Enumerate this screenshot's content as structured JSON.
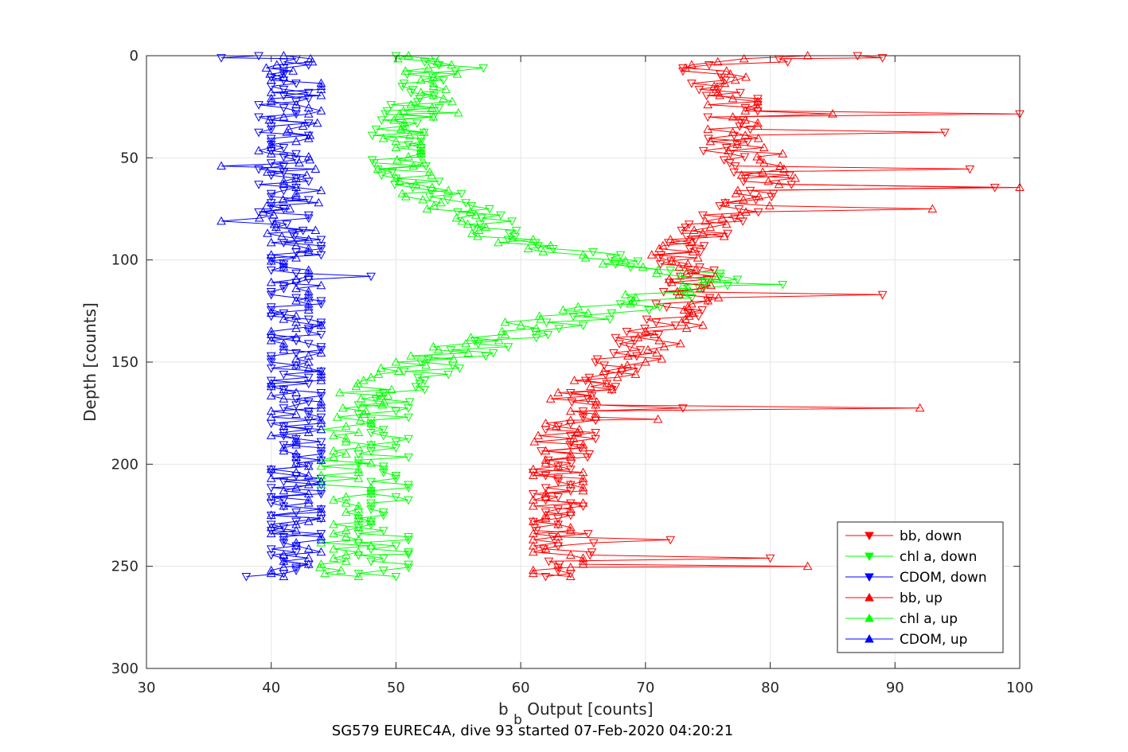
{
  "caption": "SG579 EUREC4A, dive 93 started 07-Feb-2020 04:20:21",
  "chart_data": {
    "type": "scatter",
    "xlabel_main": "b",
    "xlabel_sub": "b",
    "xlabel_rest": " Output [counts]",
    "ylabel": "Depth [counts]",
    "xlim": [
      30,
      100
    ],
    "ylim": [
      0,
      300
    ],
    "y_reversed": true,
    "grid": true,
    "x_ticks": [
      30,
      40,
      50,
      60,
      70,
      80,
      90,
      100
    ],
    "y_ticks": [
      0,
      50,
      100,
      150,
      200,
      250,
      300
    ],
    "x_tick_labels": [
      "30",
      "40",
      "50",
      "60",
      "70",
      "80",
      "90",
      "100"
    ],
    "y_tick_labels": [
      "0",
      "50",
      "100",
      "150",
      "200",
      "250",
      "300"
    ],
    "legend_position": "bottom-right",
    "series": [
      {
        "name": "bb, down",
        "color": "#ff0000",
        "marker": "triangle-down",
        "profile": [
          [
            0,
            86
          ],
          [
            5,
            75
          ],
          [
            10,
            75
          ],
          [
            20,
            77
          ],
          [
            30,
            77
          ],
          [
            40,
            76
          ],
          [
            50,
            77
          ],
          [
            60,
            80
          ],
          [
            70,
            79
          ],
          [
            80,
            76
          ],
          [
            90,
            74
          ],
          [
            100,
            73
          ],
          [
            110,
            74
          ],
          [
            120,
            73
          ],
          [
            130,
            72
          ],
          [
            140,
            69
          ],
          [
            150,
            68
          ],
          [
            160,
            66
          ],
          [
            170,
            64
          ],
          [
            180,
            64
          ],
          [
            190,
            64
          ],
          [
            200,
            63
          ],
          [
            210,
            63
          ],
          [
            220,
            63
          ],
          [
            230,
            63
          ],
          [
            240,
            64
          ],
          [
            250,
            63
          ],
          [
            255,
            63
          ]
        ],
        "spikes": [
          [
            1,
            89
          ],
          [
            29,
            100
          ],
          [
            38,
            94
          ],
          [
            56,
            96
          ],
          [
            65,
            98
          ],
          [
            117,
            89
          ],
          [
            173,
            73
          ],
          [
            237,
            72
          ],
          [
            246,
            80
          ]
        ]
      },
      {
        "name": "chl a, down",
        "color": "#00ff00",
        "marker": "triangle-down",
        "profile": [
          [
            0,
            52
          ],
          [
            10,
            53
          ],
          [
            20,
            52
          ],
          [
            30,
            51
          ],
          [
            40,
            50
          ],
          [
            50,
            50
          ],
          [
            60,
            51
          ],
          [
            70,
            54
          ],
          [
            80,
            57
          ],
          [
            90,
            60
          ],
          [
            95,
            64
          ],
          [
            100,
            68
          ],
          [
            105,
            72
          ],
          [
            108,
            76
          ],
          [
            112,
            77
          ],
          [
            118,
            72
          ],
          [
            125,
            68
          ],
          [
            132,
            63
          ],
          [
            140,
            58
          ],
          [
            150,
            54
          ],
          [
            160,
            51
          ],
          [
            170,
            49
          ],
          [
            180,
            49
          ],
          [
            190,
            49
          ],
          [
            200,
            49
          ],
          [
            210,
            49
          ],
          [
            220,
            49
          ],
          [
            230,
            49
          ],
          [
            240,
            49
          ],
          [
            250,
            49
          ],
          [
            255,
            49
          ]
        ],
        "spikes": [
          [
            6,
            57
          ],
          [
            112,
            81
          ],
          [
            188,
            51
          ],
          [
            244,
            51
          ]
        ]
      },
      {
        "name": "CDOM, down",
        "color": "#0000ff",
        "marker": "triangle-down",
        "profile": [
          [
            0,
            41
          ],
          [
            10,
            41
          ],
          [
            20,
            41
          ],
          [
            30,
            41
          ],
          [
            40,
            41
          ],
          [
            50,
            41
          ],
          [
            60,
            41
          ],
          [
            70,
            41
          ],
          [
            80,
            41
          ],
          [
            90,
            42
          ],
          [
            100,
            42
          ],
          [
            110,
            42
          ],
          [
            120,
            42
          ],
          [
            130,
            42
          ],
          [
            140,
            42
          ],
          [
            150,
            42
          ],
          [
            160,
            42
          ],
          [
            170,
            42
          ],
          [
            180,
            42
          ],
          [
            190,
            42
          ],
          [
            200,
            42
          ],
          [
            210,
            42
          ],
          [
            220,
            42
          ],
          [
            230,
            42
          ],
          [
            240,
            42
          ],
          [
            250,
            42
          ],
          [
            255,
            42
          ]
        ],
        "spikes": [
          [
            108,
            48
          ],
          [
            1,
            36
          ],
          [
            255,
            38
          ]
        ]
      },
      {
        "name": "bb, up",
        "color": "#ff0000",
        "marker": "triangle-up",
        "profile": [
          [
            0,
            82
          ],
          [
            5,
            75
          ],
          [
            10,
            76
          ],
          [
            20,
            77
          ],
          [
            30,
            77
          ],
          [
            40,
            77
          ],
          [
            50,
            78
          ],
          [
            60,
            80
          ],
          [
            70,
            79
          ],
          [
            80,
            76
          ],
          [
            90,
            74
          ],
          [
            100,
            72
          ],
          [
            110,
            74
          ],
          [
            120,
            75
          ],
          [
            130,
            73
          ],
          [
            140,
            71
          ],
          [
            150,
            69
          ],
          [
            160,
            66
          ],
          [
            170,
            64
          ],
          [
            180,
            64
          ],
          [
            190,
            63
          ],
          [
            200,
            63
          ],
          [
            210,
            63
          ],
          [
            220,
            63
          ],
          [
            230,
            63
          ],
          [
            240,
            63
          ],
          [
            250,
            63
          ],
          [
            255,
            63
          ]
        ],
        "spikes": [
          [
            29,
            85
          ],
          [
            48,
            81
          ],
          [
            65,
            100
          ],
          [
            75,
            93
          ],
          [
            173,
            92
          ],
          [
            178,
            71
          ],
          [
            250,
            83
          ]
        ]
      },
      {
        "name": "chl a, up",
        "color": "#00ff00",
        "marker": "triangle-up",
        "profile": [
          [
            0,
            52
          ],
          [
            10,
            53
          ],
          [
            20,
            53
          ],
          [
            30,
            51
          ],
          [
            40,
            50
          ],
          [
            50,
            50
          ],
          [
            60,
            51
          ],
          [
            70,
            53
          ],
          [
            80,
            56
          ],
          [
            90,
            59
          ],
          [
            95,
            63
          ],
          [
            100,
            67
          ],
          [
            105,
            71
          ],
          [
            110,
            74
          ],
          [
            115,
            72
          ],
          [
            120,
            68
          ],
          [
            125,
            64
          ],
          [
            130,
            61
          ],
          [
            140,
            56
          ],
          [
            150,
            52
          ],
          [
            160,
            48
          ],
          [
            170,
            47
          ],
          [
            180,
            46
          ],
          [
            190,
            46
          ],
          [
            200,
            46
          ],
          [
            210,
            46
          ],
          [
            220,
            46
          ],
          [
            230,
            46
          ],
          [
            240,
            46
          ],
          [
            250,
            46
          ],
          [
            255,
            45
          ]
        ],
        "spikes": [
          [
            28,
            55
          ]
        ]
      },
      {
        "name": "CDOM, up",
        "color": "#0000ff",
        "marker": "triangle-up",
        "profile": [
          [
            0,
            41
          ],
          [
            10,
            42
          ],
          [
            20,
            42
          ],
          [
            30,
            42
          ],
          [
            40,
            41
          ],
          [
            50,
            41
          ],
          [
            60,
            42
          ],
          [
            70,
            42
          ],
          [
            80,
            41
          ],
          [
            90,
            42
          ],
          [
            100,
            42
          ],
          [
            110,
            42
          ],
          [
            120,
            42
          ],
          [
            130,
            42
          ],
          [
            140,
            42
          ],
          [
            150,
            42
          ],
          [
            160,
            42
          ],
          [
            170,
            42
          ],
          [
            180,
            42
          ],
          [
            190,
            42
          ],
          [
            200,
            42
          ],
          [
            210,
            42
          ],
          [
            220,
            42
          ],
          [
            230,
            42
          ],
          [
            240,
            42
          ],
          [
            250,
            42
          ],
          [
            255,
            42
          ]
        ],
        "spikes": [
          [
            54,
            36
          ],
          [
            81,
            36
          ]
        ]
      }
    ]
  }
}
